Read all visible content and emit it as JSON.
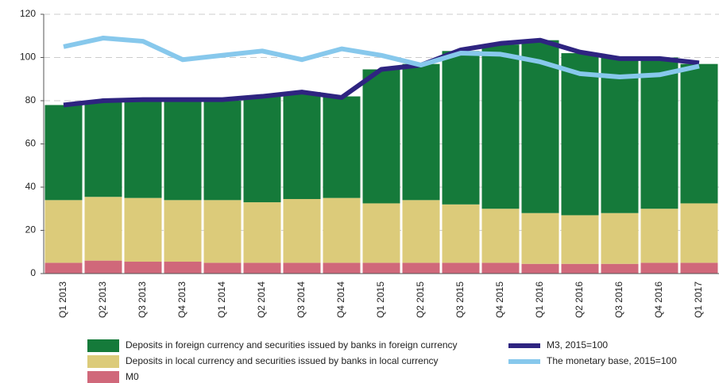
{
  "chart_data": {
    "type": "stacked-bar-line",
    "categories": [
      "Q1 2013",
      "Q2 2013",
      "Q3 2013",
      "Q4 2013",
      "Q1 2014",
      "Q2 2014",
      "Q3 2014",
      "Q4 2014",
      "Q1 2015",
      "Q2 2015",
      "Q3 2015",
      "Q4 2015",
      "Q1 2016",
      "Q2 2016",
      "Q3 2016",
      "Q4 2016",
      "Q1 2017"
    ],
    "series": [
      {
        "name": "M0",
        "type": "bar",
        "color": "#d0687a",
        "values": [
          5,
          6,
          5.5,
          5.5,
          5,
          5,
          5,
          5,
          5,
          5,
          5,
          5,
          4.5,
          4.5,
          4.5,
          5,
          5
        ]
      },
      {
        "name": "Deposits in local currency and securities issued by banks in local currency",
        "type": "bar",
        "color": "#dccb7a",
        "values": [
          29,
          29.5,
          29.5,
          28.5,
          29,
          28,
          29.5,
          30,
          27.5,
          29,
          27,
          25,
          23.5,
          22.5,
          23.5,
          25,
          27.5
        ]
      },
      {
        "name": "Deposits in foreign currency and securities issued by banks in foreign currency",
        "type": "bar",
        "color": "#157a3a",
        "values": [
          44,
          44.5,
          45,
          46,
          46,
          49,
          49.5,
          47,
          62,
          63,
          71,
          76,
          80,
          75,
          72,
          70,
          64.5
        ]
      },
      {
        "name": "M3, 2015=100",
        "type": "line",
        "color": "#2e2480",
        "values": [
          78,
          80,
          80.5,
          80.5,
          80.5,
          82,
          84,
          81.5,
          94.5,
          96.5,
          103.5,
          106.5,
          108,
          102.5,
          99.5,
          99.5,
          97.5
        ]
      },
      {
        "name": "The monetary base, 2015=100",
        "type": "line",
        "color": "#87c8ec",
        "values": [
          105,
          109,
          107.5,
          99,
          101,
          103,
          99,
          104,
          101,
          96.5,
          102,
          101.5,
          98,
          92.5,
          91,
          92,
          96
        ]
      }
    ],
    "ylim": [
      0,
      120
    ],
    "yticks": [
      0,
      20,
      40,
      60,
      80,
      100,
      120
    ],
    "grid": true
  }
}
